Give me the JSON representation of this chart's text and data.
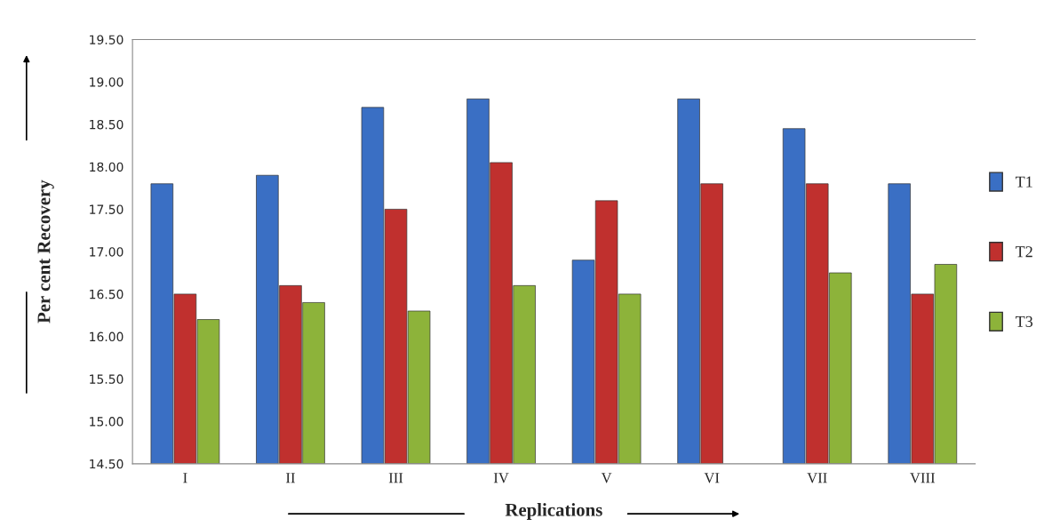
{
  "chart_data": {
    "type": "bar",
    "xlabel": "Replications",
    "ylabel": "Per cent Recovery",
    "categories": [
      "I",
      "II",
      "III",
      "IV",
      "V",
      "VI",
      "VII",
      "VIII"
    ],
    "series": [
      {
        "name": "T1",
        "color": "#3a6fc4",
        "values": [
          17.8,
          17.9,
          18.7,
          18.8,
          16.9,
          18.8,
          18.45,
          17.8
        ]
      },
      {
        "name": "T2",
        "color": "#c0302e",
        "values": [
          16.5,
          16.6,
          17.5,
          18.05,
          17.6,
          17.8,
          17.8,
          16.5
        ]
      },
      {
        "name": "T3",
        "color": "#8db33a",
        "values": [
          16.2,
          16.4,
          16.3,
          16.6,
          16.5,
          null,
          16.75,
          16.85
        ]
      }
    ],
    "ylim": [
      14.5,
      19.5
    ],
    "yticks": [
      {
        "value": 14.5,
        "label": "14.50"
      },
      {
        "value": 15,
        "label": "15.00"
      },
      {
        "value": 15.5,
        "label": "15.50"
      },
      {
        "value": 16,
        "label": "16.00"
      },
      {
        "value": 16.5,
        "label": "16.50"
      },
      {
        "value": 17,
        "label": "17.00"
      },
      {
        "value": 17.5,
        "label": "17.50"
      },
      {
        "value": 18,
        "label": "18.00"
      },
      {
        "value": 18.5,
        "label": "18.50"
      },
      {
        "value": 19,
        "label": "19.00"
      },
      {
        "value": 19.5,
        "label": "19.50"
      }
    ],
    "grid": false,
    "legend": "right"
  }
}
